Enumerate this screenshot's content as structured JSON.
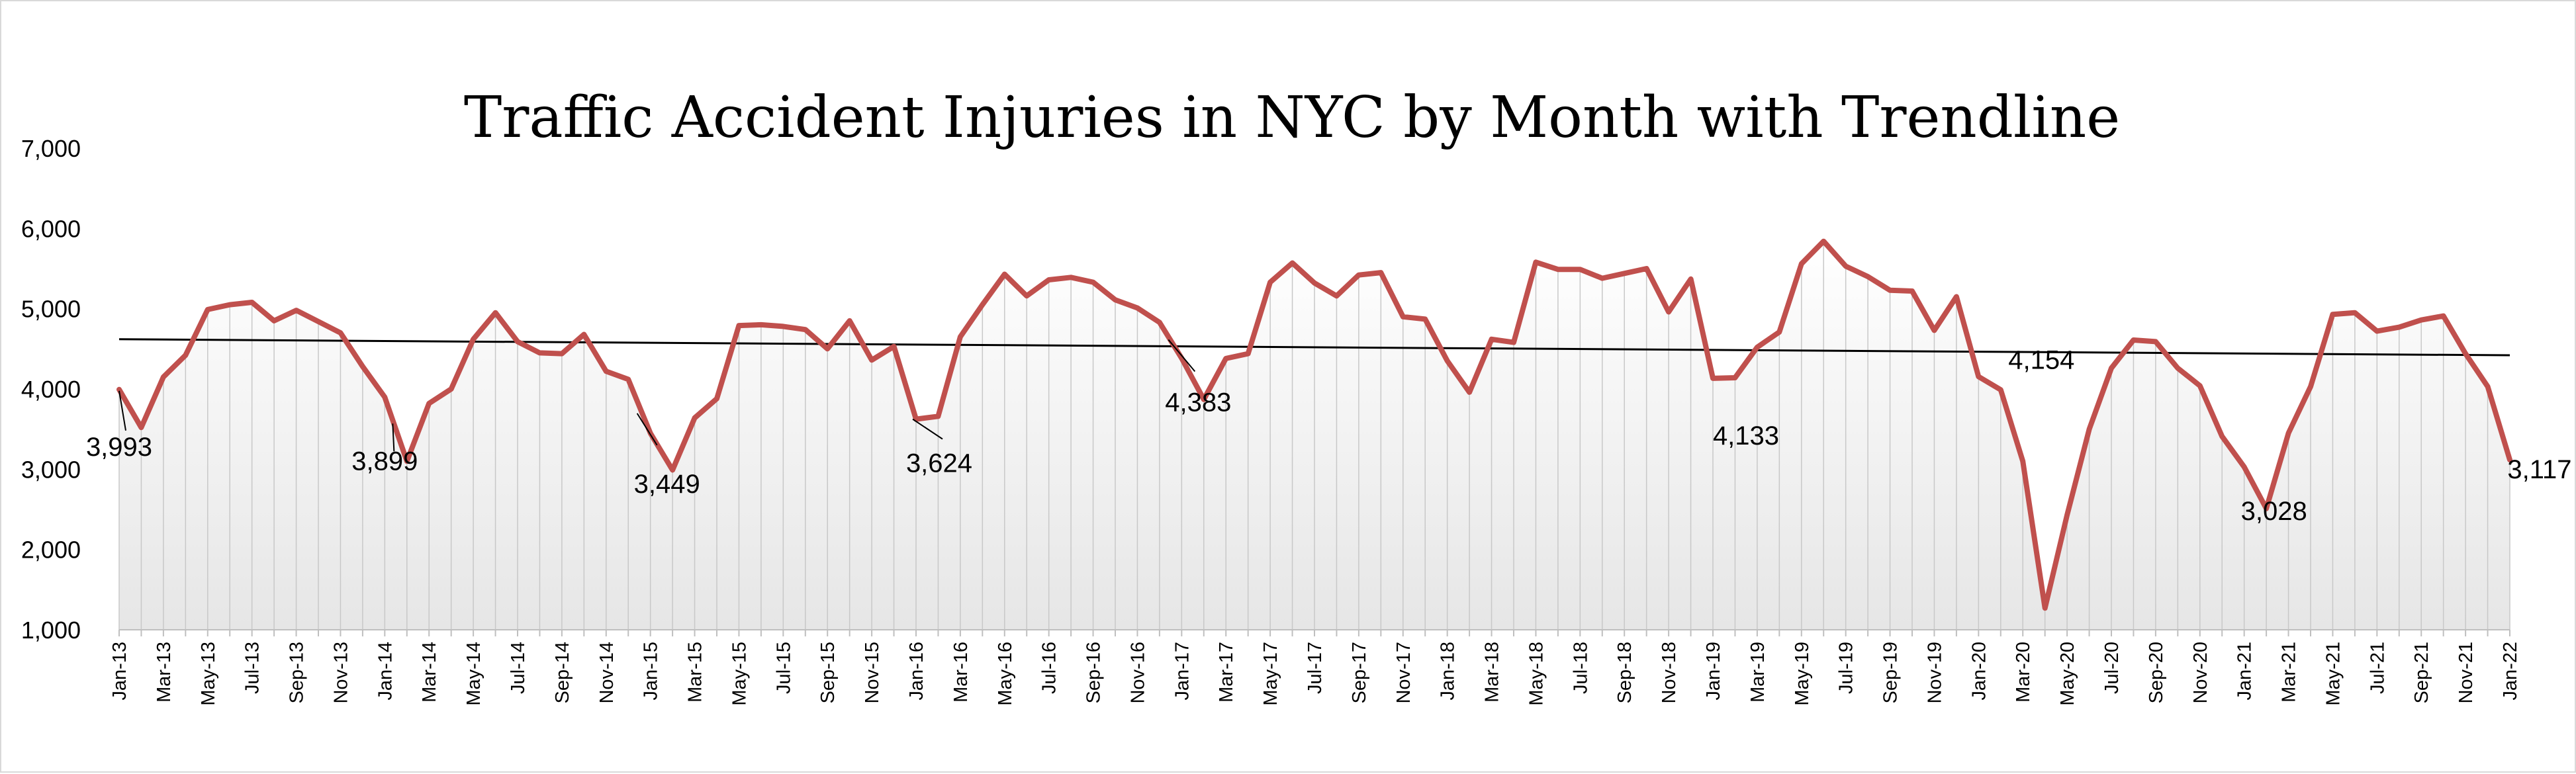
{
  "chart_data": {
    "type": "line",
    "title": "Traffic Accident Injuries in NYC  by Month with  Trendline",
    "xlabel": "",
    "ylabel": "",
    "ylim": [
      1000,
      7000
    ],
    "y_ticks": [
      "1,000",
      "2,000",
      "3,000",
      "4,000",
      "5,000",
      "6,000",
      "7,000"
    ],
    "x_tick_labels": [
      "Jan-13",
      "Mar-13",
      "May-13",
      "Jul-13",
      "Sep-13",
      "Nov-13",
      "Jan-14",
      "Mar-14",
      "May-14",
      "Jul-14",
      "Sep-14",
      "Nov-14",
      "Jan-15",
      "Mar-15",
      "May-15",
      "Jul-15",
      "Sep-15",
      "Nov-15",
      "Jan-16",
      "Mar-16",
      "May-16",
      "Jul-16",
      "Sep-16",
      "Nov-16",
      "Jan-17",
      "Mar-17",
      "May-17",
      "Jul-17",
      "Sep-17",
      "Nov-17",
      "Jan-18",
      "Mar-18",
      "May-18",
      "Jul-18",
      "Sep-18",
      "Nov-18",
      "Jan-19",
      "Mar-19",
      "May-19",
      "Jul-19",
      "Sep-19",
      "Nov-19",
      "Jan-20",
      "Mar-20",
      "May-20",
      "Jul-20",
      "Sep-20",
      "Nov-20",
      "Jan-21",
      "Mar-21",
      "May-21",
      "Jul-21",
      "Sep-21",
      "Nov-21",
      "Jan-22"
    ],
    "grid": "vertical drop lines under series, light gradient area fill",
    "legend": "none",
    "series_color": "#c0504d",
    "trend_color": "#000000",
    "series": [
      {
        "values": [
          3993,
          3520,
          4150,
          4420,
          4990,
          5050,
          5080,
          4850,
          4980,
          4840,
          4700,
          4280,
          3899,
          3100,
          3820,
          4000,
          4620,
          4950,
          4590,
          4450,
          4440,
          4680,
          4220,
          4120,
          3449,
          2990,
          3640,
          3880,
          4790,
          4800,
          4780,
          4740,
          4500,
          4850,
          4360,
          4530,
          3624,
          3660,
          4650,
          5050,
          5430,
          5160,
          5360,
          5390,
          5330,
          5110,
          5010,
          4830,
          4383,
          3870,
          4380,
          4440,
          5330,
          5570,
          5320,
          5160,
          5420,
          5450,
          4900,
          4870,
          4350,
          3960,
          4620,
          4580,
          5580,
          5490,
          5490,
          5380,
          5440,
          5500,
          4960,
          5370,
          4133,
          4140,
          4520,
          4710,
          5560,
          5840,
          5530,
          5400,
          5230,
          5220,
          4730,
          5150,
          4154,
          3990,
          3100,
          1270,
          2430,
          3500,
          4260,
          4610,
          4590,
          4260,
          4040,
          3410,
          3028,
          2510,
          3450,
          4030,
          4930,
          4950,
          4720,
          4770,
          4860,
          4910,
          4440,
          4030,
          3117
        ]
      }
    ],
    "trendline": {
      "start": 4620,
      "end": 4420
    },
    "data_labels": [
      {
        "index": 0,
        "text": "3,993"
      },
      {
        "index": 12,
        "text": "3,899"
      },
      {
        "index": 24,
        "text": "3,449"
      },
      {
        "index": 36,
        "text": "3,624"
      },
      {
        "index": 48,
        "text": "4,383"
      },
      {
        "index": 72,
        "text": "4,133"
      },
      {
        "index": 84,
        "text": "4,154"
      },
      {
        "index": 96,
        "text": "3,028"
      },
      {
        "index": 108,
        "text": "3,117"
      }
    ]
  }
}
